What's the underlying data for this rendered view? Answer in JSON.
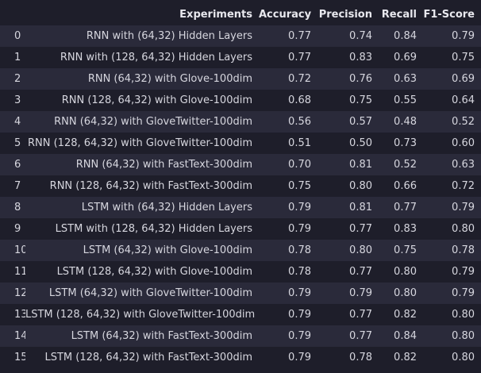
{
  "table": {
    "columns": [
      "",
      "Experiments",
      "Accuracy",
      "Precision",
      "Recall",
      "F1-Score"
    ],
    "rows": [
      [
        "0",
        "RNN with (64,32) Hidden Layers",
        "0.77",
        "0.74",
        "0.84",
        "0.79"
      ],
      [
        "1",
        "RNN with (128, 64,32) Hidden Layers",
        "0.77",
        "0.83",
        "0.69",
        "0.75"
      ],
      [
        "2",
        "RNN (64,32) with Glove-100dim",
        "0.72",
        "0.76",
        "0.63",
        "0.69"
      ],
      [
        "3",
        "RNN (128, 64,32) with Glove-100dim",
        "0.68",
        "0.75",
        "0.55",
        "0.64"
      ],
      [
        "4",
        "RNN (64,32) with GloveTwitter-100dim",
        "0.56",
        "0.57",
        "0.48",
        "0.52"
      ],
      [
        "5",
        "RNN (128, 64,32) with GloveTwitter-100dim",
        "0.51",
        "0.50",
        "0.73",
        "0.60"
      ],
      [
        "6",
        "RNN (64,32) with FastText-300dim",
        "0.70",
        "0.81",
        "0.52",
        "0.63"
      ],
      [
        "7",
        "RNN (128, 64,32) with FastText-300dim",
        "0.75",
        "0.80",
        "0.66",
        "0.72"
      ],
      [
        "8",
        "LSTM with (64,32) Hidden Layers",
        "0.79",
        "0.81",
        "0.77",
        "0.79"
      ],
      [
        "9",
        "LSTM with (128, 64,32) Hidden Layers",
        "0.79",
        "0.77",
        "0.83",
        "0.80"
      ],
      [
        "10",
        "LSTM (64,32) with Glove-100dim",
        "0.78",
        "0.80",
        "0.75",
        "0.78"
      ],
      [
        "11",
        "LSTM (128, 64,32) with Glove-100dim",
        "0.78",
        "0.77",
        "0.80",
        "0.79"
      ],
      [
        "12",
        "LSTM (64,32) with GloveTwitter-100dim",
        "0.79",
        "0.79",
        "0.80",
        "0.79"
      ],
      [
        "13",
        "LSTM (128, 64,32) with GloveTwitter-100dim",
        "0.79",
        "0.77",
        "0.82",
        "0.80"
      ],
      [
        "14",
        "LSTM (64,32) with FastText-300dim",
        "0.79",
        "0.77",
        "0.84",
        "0.80"
      ],
      [
        "15",
        "LSTM (128, 64,32) with FastText-300dim",
        "0.79",
        "0.78",
        "0.82",
        "0.80"
      ]
    ]
  }
}
